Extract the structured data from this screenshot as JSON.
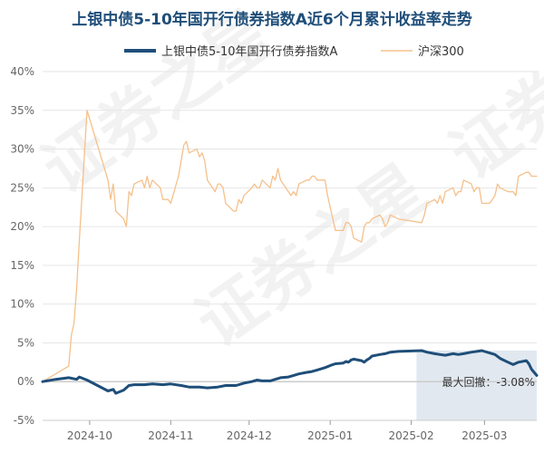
{
  "chart_data": {
    "type": "line",
    "title": "上银中债5-10年国开行债券指数A近6个月累计收益率走势",
    "ylim": [
      -5,
      40
    ],
    "y_ticks": [
      "-5%",
      "0%",
      "5%",
      "10%",
      "15%",
      "20%",
      "25%",
      "30%",
      "35%",
      "40%"
    ],
    "y_tick_values": [
      -5,
      0,
      5,
      10,
      15,
      20,
      25,
      30,
      35,
      40
    ],
    "x_ticks": [
      "2024-10",
      "2024-11",
      "2024-12",
      "2025-01",
      "2025-02",
      "2025-03"
    ],
    "x_tick_dates": [
      "2024-10-01",
      "2024-11-01",
      "2024-12-01",
      "2025-01-01",
      "2025-02-01",
      "2025-03-01"
    ],
    "x_range": [
      "2024-09-13",
      "2025-03-21"
    ],
    "grid": true,
    "legend_position": "top",
    "series": [
      {
        "name": "上银中债5-10年国开行债券指数A",
        "color": "#1f4e79",
        "points": [
          [
            "2024-09-13",
            0.0
          ],
          [
            "2024-09-18",
            0.3
          ],
          [
            "2024-09-23",
            0.5
          ],
          [
            "2024-09-26",
            0.3
          ],
          [
            "2024-09-27",
            0.6
          ],
          [
            "2024-09-30",
            0.2
          ],
          [
            "2024-10-08",
            -1.2
          ],
          [
            "2024-10-10",
            -1.0
          ],
          [
            "2024-10-11",
            -1.5
          ],
          [
            "2024-10-14",
            -1.1
          ],
          [
            "2024-10-16",
            -0.5
          ],
          [
            "2024-10-18",
            -0.4
          ],
          [
            "2024-10-22",
            -0.4
          ],
          [
            "2024-10-25",
            -0.3
          ],
          [
            "2024-10-29",
            -0.4
          ],
          [
            "2024-11-01",
            -0.3
          ],
          [
            "2024-11-05",
            -0.5
          ],
          [
            "2024-11-08",
            -0.7
          ],
          [
            "2024-11-12",
            -0.7
          ],
          [
            "2024-11-15",
            -0.8
          ],
          [
            "2024-11-19",
            -0.7
          ],
          [
            "2024-11-22",
            -0.5
          ],
          [
            "2024-11-26",
            -0.5
          ],
          [
            "2024-11-29",
            -0.2
          ],
          [
            "2024-12-02",
            0.0
          ],
          [
            "2024-12-04",
            0.2
          ],
          [
            "2024-12-06",
            0.1
          ],
          [
            "2024-12-09",
            0.1
          ],
          [
            "2024-12-11",
            0.3
          ],
          [
            "2024-12-13",
            0.5
          ],
          [
            "2024-12-16",
            0.6
          ],
          [
            "2024-12-18",
            0.8
          ],
          [
            "2024-12-20",
            1.0
          ],
          [
            "2024-12-23",
            1.2
          ],
          [
            "2024-12-25",
            1.3
          ],
          [
            "2024-12-27",
            1.5
          ],
          [
            "2024-12-30",
            1.8
          ],
          [
            "2025-01-02",
            2.2
          ],
          [
            "2025-01-03",
            2.3
          ],
          [
            "2025-01-06",
            2.4
          ],
          [
            "2025-01-07",
            2.6
          ],
          [
            "2025-01-08",
            2.5
          ],
          [
            "2025-01-09",
            2.8
          ],
          [
            "2025-01-10",
            2.9
          ],
          [
            "2025-01-13",
            2.7
          ],
          [
            "2025-01-14",
            2.5
          ],
          [
            "2025-01-15",
            2.8
          ],
          [
            "2025-01-16",
            3.0
          ],
          [
            "2025-01-17",
            3.3
          ],
          [
            "2025-01-20",
            3.5
          ],
          [
            "2025-01-22",
            3.6
          ],
          [
            "2025-01-24",
            3.8
          ],
          [
            "2025-01-27",
            3.9
          ],
          [
            "2025-02-05",
            4.0
          ],
          [
            "2025-02-07",
            3.8
          ],
          [
            "2025-02-10",
            3.6
          ],
          [
            "2025-02-12",
            3.5
          ],
          [
            "2025-02-14",
            3.4
          ],
          [
            "2025-02-17",
            3.6
          ],
          [
            "2025-02-19",
            3.5
          ],
          [
            "2025-02-21",
            3.6
          ],
          [
            "2025-02-24",
            3.8
          ],
          [
            "2025-02-26",
            3.9
          ],
          [
            "2025-02-28",
            4.0
          ],
          [
            "2025-03-03",
            3.7
          ],
          [
            "2025-03-05",
            3.5
          ],
          [
            "2025-03-07",
            3.0
          ],
          [
            "2025-03-10",
            2.5
          ],
          [
            "2025-03-12",
            2.2
          ],
          [
            "2025-03-14",
            2.5
          ],
          [
            "2025-03-17",
            2.7
          ],
          [
            "2025-03-18",
            2.3
          ],
          [
            "2025-03-19",
            1.6
          ],
          [
            "2025-03-20",
            1.2
          ],
          [
            "2025-03-21",
            0.8
          ]
        ]
      },
      {
        "name": "沪深300",
        "color": "#f5c08b",
        "points": [
          [
            "2024-09-13",
            0.0
          ],
          [
            "2024-09-18",
            1.0
          ],
          [
            "2024-09-23",
            2.0
          ],
          [
            "2024-09-24",
            6.0
          ],
          [
            "2024-09-25",
            7.5
          ],
          [
            "2024-09-26",
            12.0
          ],
          [
            "2024-09-27",
            18.0
          ],
          [
            "2024-09-30",
            35.0
          ],
          [
            "2024-10-08",
            26.0
          ],
          [
            "2024-10-09",
            23.5
          ],
          [
            "2024-10-10",
            25.5
          ],
          [
            "2024-10-11",
            22.0
          ],
          [
            "2024-10-14",
            21.0
          ],
          [
            "2024-10-15",
            20.0
          ],
          [
            "2024-10-16",
            24.5
          ],
          [
            "2024-10-17",
            24.0
          ],
          [
            "2024-10-18",
            25.5
          ],
          [
            "2024-10-21",
            26.0
          ],
          [
            "2024-10-22",
            25.0
          ],
          [
            "2024-10-23",
            26.5
          ],
          [
            "2024-10-24",
            25.0
          ],
          [
            "2024-10-25",
            26.0
          ],
          [
            "2024-10-28",
            25.0
          ],
          [
            "2024-10-29",
            23.5
          ],
          [
            "2024-10-30",
            23.5
          ],
          [
            "2024-10-31",
            23.5
          ],
          [
            "2024-11-01",
            23.0
          ],
          [
            "2024-11-04",
            26.5
          ],
          [
            "2024-11-05",
            28.5
          ],
          [
            "2024-11-06",
            30.5
          ],
          [
            "2024-11-07",
            31.0
          ],
          [
            "2024-11-08",
            29.5
          ],
          [
            "2024-11-11",
            30.0
          ],
          [
            "2024-11-12",
            29.0
          ],
          [
            "2024-11-13",
            29.5
          ],
          [
            "2024-11-14",
            28.5
          ],
          [
            "2024-11-15",
            26.0
          ],
          [
            "2024-11-18",
            24.5
          ],
          [
            "2024-11-19",
            25.5
          ],
          [
            "2024-11-20",
            25.5
          ],
          [
            "2024-11-21",
            25.0
          ],
          [
            "2024-11-22",
            23.0
          ],
          [
            "2024-11-25",
            22.0
          ],
          [
            "2024-11-26",
            22.0
          ],
          [
            "2024-11-27",
            23.5
          ],
          [
            "2024-11-28",
            23.0
          ],
          [
            "2024-11-29",
            24.0
          ],
          [
            "2024-12-02",
            25.0
          ],
          [
            "2024-12-03",
            25.5
          ],
          [
            "2024-12-04",
            25.0
          ],
          [
            "2024-12-05",
            25.0
          ],
          [
            "2024-12-06",
            26.0
          ],
          [
            "2024-12-09",
            25.0
          ],
          [
            "2024-12-10",
            26.5
          ],
          [
            "2024-12-11",
            26.0
          ],
          [
            "2024-12-12",
            27.5
          ],
          [
            "2024-12-13",
            26.0
          ],
          [
            "2024-12-16",
            24.5
          ],
          [
            "2024-12-17",
            24.0
          ],
          [
            "2024-12-18",
            24.5
          ],
          [
            "2024-12-19",
            24.0
          ],
          [
            "2024-12-20",
            25.5
          ],
          [
            "2024-12-23",
            26.0
          ],
          [
            "2024-12-24",
            26.0
          ],
          [
            "2024-12-25",
            26.5
          ],
          [
            "2024-12-26",
            26.5
          ],
          [
            "2024-12-27",
            26.0
          ],
          [
            "2024-12-30",
            26.0
          ],
          [
            "2024-12-31",
            24.0
          ],
          [
            "2025-01-02",
            21.0
          ],
          [
            "2025-01-03",
            19.5
          ],
          [
            "2025-01-06",
            19.5
          ],
          [
            "2025-01-07",
            20.5
          ],
          [
            "2025-01-08",
            20.5
          ],
          [
            "2025-01-09",
            20.0
          ],
          [
            "2025-01-10",
            18.5
          ],
          [
            "2025-01-13",
            18.0
          ],
          [
            "2025-01-14",
            20.0
          ],
          [
            "2025-01-15",
            20.5
          ],
          [
            "2025-01-16",
            20.5
          ],
          [
            "2025-01-17",
            21.0
          ],
          [
            "2025-01-20",
            21.5
          ],
          [
            "2025-01-21",
            21.0
          ],
          [
            "2025-01-22",
            20.0
          ],
          [
            "2025-01-23",
            20.5
          ],
          [
            "2025-01-24",
            21.5
          ],
          [
            "2025-01-27",
            21.0
          ],
          [
            "2025-02-05",
            20.5
          ],
          [
            "2025-02-06",
            21.5
          ],
          [
            "2025-02-07",
            23.0
          ],
          [
            "2025-02-10",
            23.5
          ],
          [
            "2025-02-11",
            23.0
          ],
          [
            "2025-02-12",
            24.0
          ],
          [
            "2025-02-13",
            23.0
          ],
          [
            "2025-02-14",
            24.5
          ],
          [
            "2025-02-17",
            25.0
          ],
          [
            "2025-02-18",
            24.0
          ],
          [
            "2025-02-19",
            24.5
          ],
          [
            "2025-02-20",
            24.5
          ],
          [
            "2025-02-21",
            26.0
          ],
          [
            "2025-02-24",
            25.5
          ],
          [
            "2025-02-25",
            24.5
          ],
          [
            "2025-02-26",
            25.0
          ],
          [
            "2025-02-27",
            25.0
          ],
          [
            "2025-02-28",
            23.0
          ],
          [
            "2025-03-03",
            23.0
          ],
          [
            "2025-03-04",
            23.5
          ],
          [
            "2025-03-05",
            24.0
          ],
          [
            "2025-03-06",
            25.5
          ],
          [
            "2025-03-07",
            25.0
          ],
          [
            "2025-03-10",
            24.5
          ],
          [
            "2025-03-11",
            24.5
          ],
          [
            "2025-03-12",
            24.5
          ],
          [
            "2025-03-13",
            24.0
          ],
          [
            "2025-03-14",
            26.5
          ],
          [
            "2025-03-17",
            27.0
          ],
          [
            "2025-03-18",
            27.0
          ],
          [
            "2025-03-19",
            26.5
          ],
          [
            "2025-03-20",
            26.5
          ],
          [
            "2025-03-21",
            26.5
          ]
        ]
      }
    ],
    "max_drawdown": {
      "label": "最大回撤：-3.08%",
      "start": "2025-02-03",
      "end": "2025-03-21",
      "color": "#c9d6e3"
    },
    "watermark": "证券之星"
  }
}
